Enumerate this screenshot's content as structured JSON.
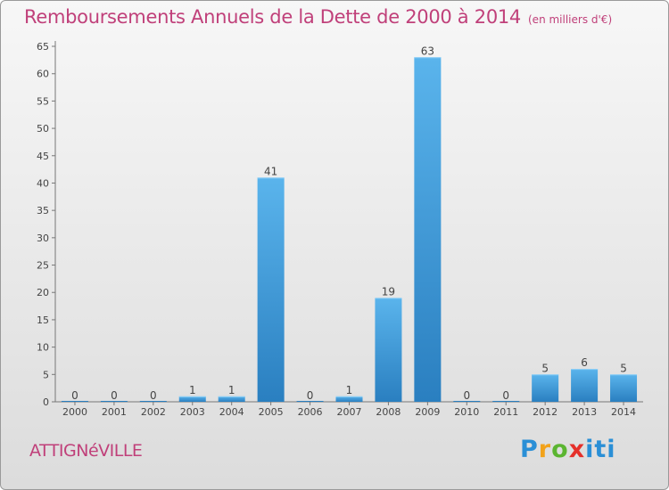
{
  "title": {
    "main": "Remboursements Annuels de la Dette de 2000 à 2014",
    "unit": "(en milliers d'€)"
  },
  "town": "ATTIGNéVILLE",
  "logo": {
    "text": "Proxiti",
    "colors": [
      "#2a8fd6",
      "#f2a21a",
      "#5bb531",
      "#e5302a",
      "#2a8fd6",
      "#2a8fd6",
      "#2a8fd6"
    ]
  },
  "colors": {
    "title": "#c0407a",
    "bar_top": "#5ab4ec",
    "bar_bottom": "#2a7fc0"
  },
  "chart_data": {
    "type": "bar",
    "title": "Remboursements Annuels de la Dette de 2000 à 2014",
    "subtitle": "(en milliers d'€)",
    "categories": [
      "2000",
      "2001",
      "2002",
      "2003",
      "2004",
      "2005",
      "2006",
      "2007",
      "2008",
      "2009",
      "2010",
      "2011",
      "2012",
      "2013",
      "2014"
    ],
    "values": [
      0,
      0,
      0,
      1,
      1,
      41,
      0,
      1,
      19,
      63,
      0,
      0,
      5,
      6,
      5
    ],
    "xlabel": "",
    "ylabel": "",
    "ylim": [
      0,
      65
    ],
    "yticks": [
      0,
      5,
      10,
      15,
      20,
      25,
      30,
      35,
      40,
      45,
      50,
      55,
      60,
      65
    ],
    "grid": false,
    "legend": "none"
  }
}
